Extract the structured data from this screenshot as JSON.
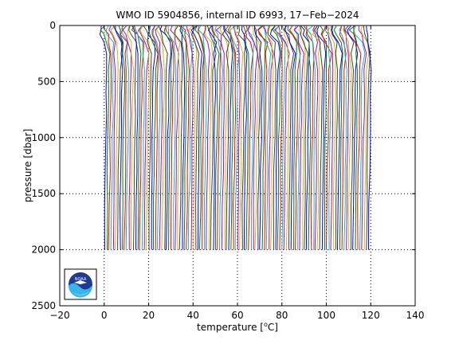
{
  "chart_data": {
    "type": "line",
    "title": "WMO ID 5904856, internal ID 6993, 17−Feb−2024",
    "xlabel_prefix": "temperature [",
    "xlabel_unit_super": "o",
    "xlabel_unit_suffix": "C]",
    "ylabel": "pressure [dbar]",
    "xlim": [
      -20,
      140
    ],
    "ylim": [
      0,
      2500
    ],
    "y_reversed": true,
    "xticks": [
      -20,
      0,
      20,
      40,
      60,
      80,
      100,
      120,
      140
    ],
    "yticks": [
      0,
      500,
      1000,
      1500,
      2000,
      2500
    ],
    "xtick_labels": [
      "−20",
      "0",
      "20",
      "40",
      "60",
      "80",
      "100",
      "120",
      "140"
    ],
    "ytick_labels": [
      "0",
      "500",
      "1000",
      "1500",
      "2000",
      "2500"
    ],
    "grid": "dotted",
    "profile_count": 120,
    "offset_step": 1,
    "first_profile": {
      "pressure": [
        5,
        40,
        80,
        150,
        250,
        400,
        600,
        800,
        1000,
        1300,
        1600,
        2000
      ],
      "temperature": [
        -1.3,
        -1.6,
        -1.0,
        0.6,
        1.2,
        1.1,
        1.0,
        0.9,
        0.7,
        0.5,
        0.3,
        0.1
      ]
    },
    "colors": [
      "#0000ff",
      "#008000",
      "#ff0000",
      "#00bfbf",
      "#bf00bf",
      "#bfbf00",
      "#404040"
    ]
  },
  "logo": {
    "text": "NOAA"
  }
}
